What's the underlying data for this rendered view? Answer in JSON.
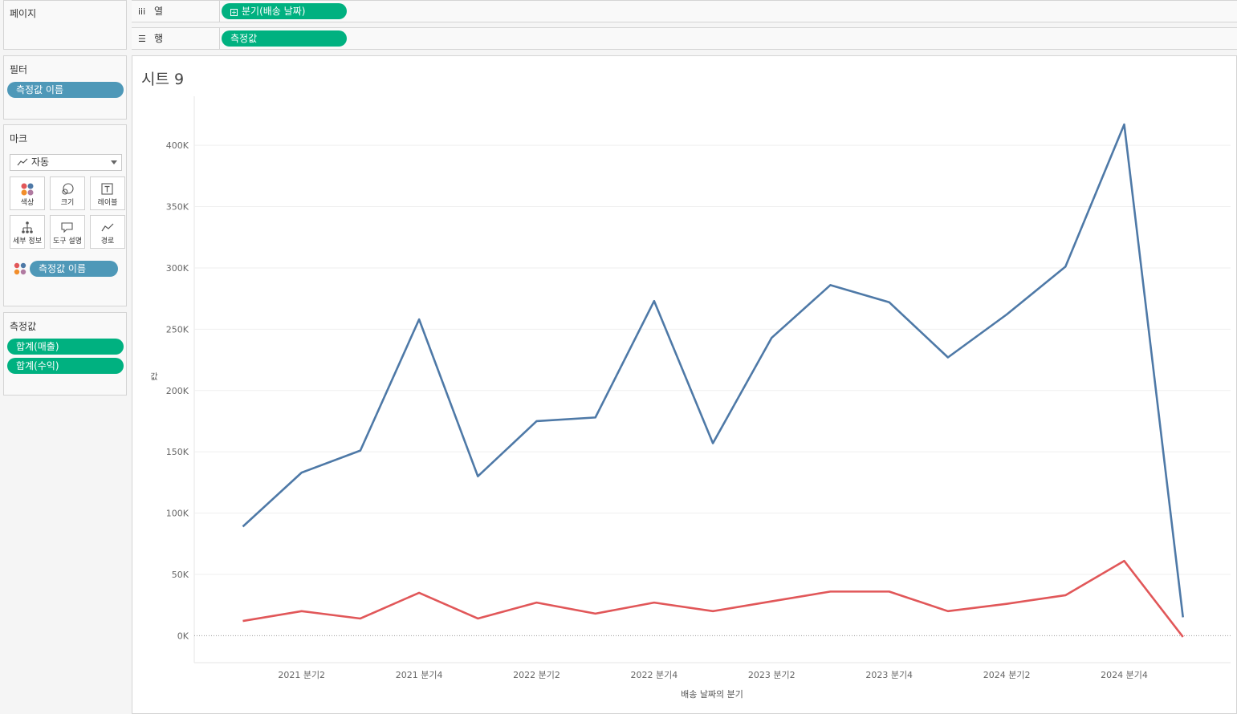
{
  "pages_card": {
    "title": "페이지"
  },
  "filters_card": {
    "title": "필터",
    "pills": [
      "측정값 이름"
    ]
  },
  "marks_card": {
    "title": "마크",
    "mark_type": "자동",
    "buttons": [
      "색상",
      "크기",
      "레이블",
      "세부 정보",
      "도구 설명",
      "경로"
    ],
    "color_pill": "측정값 이름"
  },
  "measures_card": {
    "title": "측정값",
    "pills": [
      "합계(매출)",
      "합계(수익)"
    ]
  },
  "columns_shelf": {
    "label": "열",
    "pill": "분기(배송 날짜)"
  },
  "rows_shelf": {
    "label": "행",
    "pill": "측정값"
  },
  "sheet": {
    "title": "시트 9"
  },
  "colors": {
    "series_blue": "#4e79a7",
    "series_red": "#e15759",
    "pill_green": "#00b180",
    "pill_blue": "#4e98b8"
  },
  "chart_data": {
    "type": "line",
    "xlabel": "배송 날짜의 분기",
    "ylabel": "값",
    "x": [
      "2021 분기1",
      "2021 분기2",
      "2021 분기3",
      "2021 분기4",
      "2022 분기1",
      "2022 분기2",
      "2022 분기3",
      "2022 분기4",
      "2023 분기1",
      "2023 분기2",
      "2023 분기3",
      "2023 분기4",
      "2024 분기1",
      "2024 분기2",
      "2024 분기3",
      "2024 분기4",
      "2025 분기1"
    ],
    "x_tick_labels": [
      "2021 분기2",
      "2021 분기4",
      "2022 분기2",
      "2022 분기4",
      "2023 분기2",
      "2023 분기4",
      "2024 분기2",
      "2024 분기4"
    ],
    "x_tick_indices": [
      1,
      3,
      5,
      7,
      9,
      11,
      13,
      15
    ],
    "y_ticks": [
      0,
      50000,
      100000,
      150000,
      200000,
      250000,
      300000,
      350000,
      400000
    ],
    "y_tick_labels": [
      "0K",
      "50K",
      "100K",
      "150K",
      "200K",
      "250K",
      "300K",
      "350K",
      "400K"
    ],
    "ylim": [
      -22000,
      440000
    ],
    "grid": true,
    "series": [
      {
        "values": [
          89000,
          133000,
          151000,
          258000,
          130000,
          175000,
          178000,
          273000,
          157000,
          243000,
          286000,
          272000,
          227000,
          262000,
          301000,
          417000,
          15000
        ]
      },
      {
        "values": [
          12000,
          20000,
          14000,
          35000,
          14000,
          27000,
          18000,
          27000,
          20000,
          28000,
          36000,
          36000,
          20000,
          26000,
          33000,
          61000,
          -1000
        ]
      }
    ]
  }
}
